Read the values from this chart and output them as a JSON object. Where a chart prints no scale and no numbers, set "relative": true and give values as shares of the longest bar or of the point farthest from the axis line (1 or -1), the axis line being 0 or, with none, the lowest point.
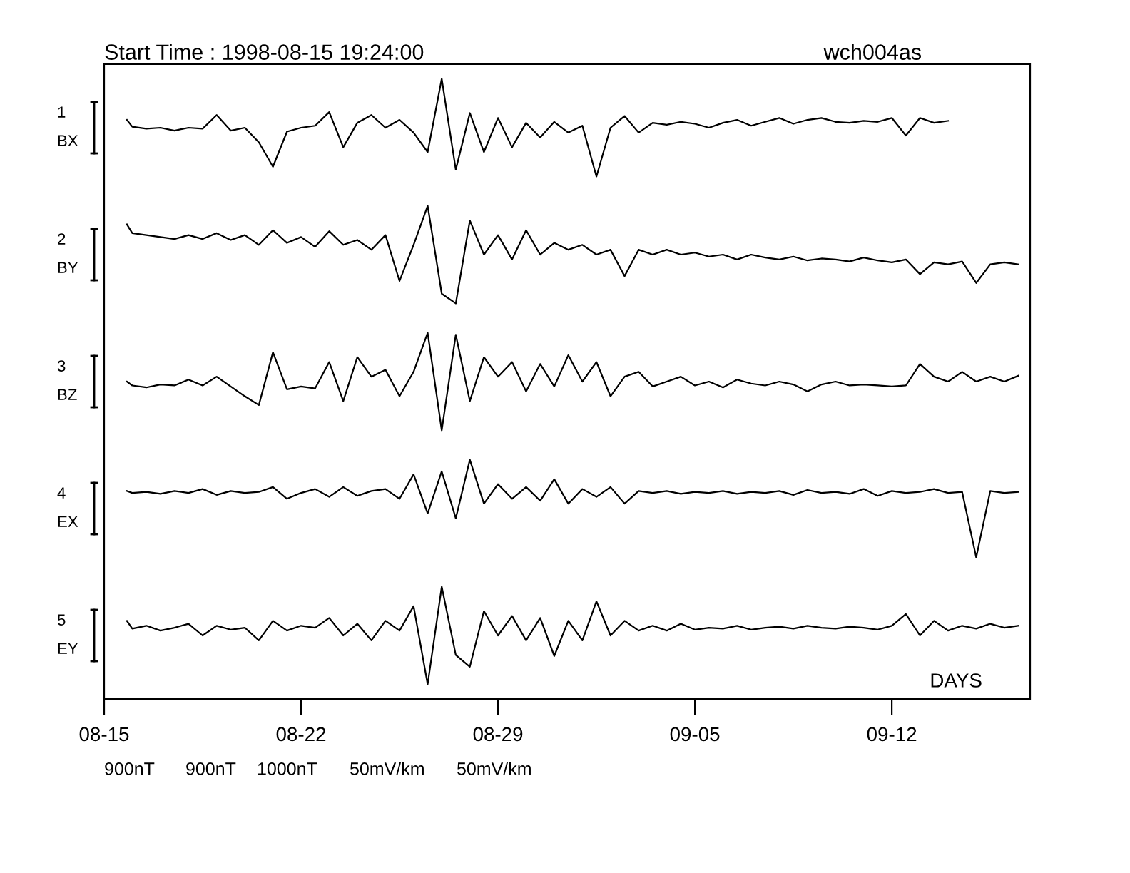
{
  "chart_data": [
    {
      "type": "line",
      "relative": true,
      "title": "Start Time : 1998-08-15 19:24:00",
      "subtitle": "wch004as",
      "ylabel": "1\nBX",
      "annotations": [
        "900nT"
      ],
      "tick_labels": false,
      "xlim": [
        "1998-08-15",
        "1998-09-16T22:00"
      ],
      "x": [
        "1998-08-15T19:24",
        "1998-08-16T00:00",
        "1998-08-16T12:00",
        "1998-08-17T00:00",
        "1998-08-17T12:00",
        "1998-08-18T00:00",
        "1998-08-18T12:00",
        "1998-08-19T00:00",
        "1998-08-19T12:00",
        "1998-08-20T00:00",
        "1998-08-20T12:00",
        "1998-08-21T00:00",
        "1998-08-21T12:00",
        "1998-08-22T00:00",
        "1998-08-22T12:00",
        "1998-08-23T00:00",
        "1998-08-23T12:00",
        "1998-08-24T00:00",
        "1998-08-24T12:00",
        "1998-08-25T00:00",
        "1998-08-25T12:00",
        "1998-08-26T00:00",
        "1998-08-26T12:00",
        "1998-08-27T00:00",
        "1998-08-27T12:00",
        "1998-08-28T00:00",
        "1998-08-28T12:00",
        "1998-08-29T00:00",
        "1998-08-29T12:00",
        "1998-08-30T00:00",
        "1998-08-30T12:00",
        "1998-08-31T00:00",
        "1998-08-31T12:00",
        "1998-09-01T00:00",
        "1998-09-01T12:00",
        "1998-09-02T00:00",
        "1998-09-02T12:00",
        "1998-09-03T00:00",
        "1998-09-03T12:00",
        "1998-09-04T00:00",
        "1998-09-04T12:00",
        "1998-09-05T00:00",
        "1998-09-05T12:00",
        "1998-09-06T00:00",
        "1998-09-06T12:00",
        "1998-09-07T00:00",
        "1998-09-07T12:00",
        "1998-09-08T00:00",
        "1998-09-08T12:00",
        "1998-09-09T00:00",
        "1998-09-09T12:00",
        "1998-09-10T00:00",
        "1998-09-10T12:00",
        "1998-09-11T00:00",
        "1998-09-11T12:00",
        "1998-09-12T00:00",
        "1998-09-12T12:00",
        "1998-09-13T00:00",
        "1998-09-13T12:00",
        "1998-09-14T00:00"
      ],
      "series": [
        {
          "color": "#000000",
          "values": [
            0.58,
            0.51,
            0.49,
            0.5,
            0.47,
            0.5,
            0.49,
            0.63,
            0.47,
            0.5,
            0.35,
            0.1,
            0.46,
            0.5,
            0.52,
            0.66,
            0.3,
            0.55,
            0.63,
            0.5,
            0.58,
            0.45,
            0.25,
            1.0,
            0.07,
            0.65,
            0.25,
            0.6,
            0.3,
            0.55,
            0.4,
            0.56,
            0.45,
            0.52,
            0.0,
            0.5,
            0.62,
            0.45,
            0.55,
            0.53,
            0.56,
            0.54,
            0.5,
            0.55,
            0.58,
            0.52,
            0.56,
            0.6,
            0.54,
            0.58,
            0.6,
            0.56,
            0.55,
            0.57,
            0.56,
            0.6,
            0.42,
            0.6,
            0.55,
            0.57
          ]
        }
      ]
    },
    {
      "type": "line",
      "relative": true,
      "ylabel": "2\nBY",
      "annotations": [
        "900nT"
      ],
      "tick_labels": false,
      "xlim": [
        "1998-08-15",
        "1998-09-16T22:00"
      ],
      "x": [
        "1998-08-15T19:24",
        "1998-08-16T00:00",
        "1998-08-16T12:00",
        "1998-08-17T00:00",
        "1998-08-17T12:00",
        "1998-08-18T00:00",
        "1998-08-18T12:00",
        "1998-08-19T00:00",
        "1998-08-19T12:00",
        "1998-08-20T00:00",
        "1998-08-20T12:00",
        "1998-08-21T00:00",
        "1998-08-21T12:00",
        "1998-08-22T00:00",
        "1998-08-22T12:00",
        "1998-08-23T00:00",
        "1998-08-23T12:00",
        "1998-08-24T00:00",
        "1998-08-24T12:00",
        "1998-08-25T00:00",
        "1998-08-25T12:00",
        "1998-08-26T00:00",
        "1998-08-26T12:00",
        "1998-08-27T00:00",
        "1998-08-27T12:00",
        "1998-08-28T00:00",
        "1998-08-28T12:00",
        "1998-08-29T00:00",
        "1998-08-29T12:00",
        "1998-08-30T00:00",
        "1998-08-30T12:00",
        "1998-08-31T00:00",
        "1998-08-31T12:00",
        "1998-09-01T00:00",
        "1998-09-01T12:00",
        "1998-09-02T00:00",
        "1998-09-02T12:00",
        "1998-09-03T00:00",
        "1998-09-03T12:00",
        "1998-09-04T00:00",
        "1998-09-04T12:00",
        "1998-09-05T00:00",
        "1998-09-05T12:00",
        "1998-09-06T00:00",
        "1998-09-06T12:00",
        "1998-09-07T00:00",
        "1998-09-07T12:00",
        "1998-09-08T00:00",
        "1998-09-08T12:00",
        "1998-09-09T00:00",
        "1998-09-09T12:00",
        "1998-09-10T00:00",
        "1998-09-10T12:00",
        "1998-09-11T00:00",
        "1998-09-11T12:00",
        "1998-09-12T00:00",
        "1998-09-12T12:00",
        "1998-09-13T00:00",
        "1998-09-13T12:00",
        "1998-09-14T00:00",
        "1998-09-14T12:00",
        "1998-09-15T00:00",
        "1998-09-15T12:00",
        "1998-09-16T00:00",
        "1998-09-16T12:00"
      ],
      "series": [
        {
          "color": "#000000",
          "values": [
            0.81,
            0.72,
            0.7,
            0.68,
            0.66,
            0.7,
            0.66,
            0.72,
            0.65,
            0.7,
            0.6,
            0.75,
            0.62,
            0.68,
            0.58,
            0.74,
            0.6,
            0.65,
            0.55,
            0.7,
            0.23,
            0.6,
            1.0,
            0.1,
            0.0,
            0.85,
            0.5,
            0.7,
            0.45,
            0.75,
            0.5,
            0.62,
            0.55,
            0.6,
            0.5,
            0.55,
            0.28,
            0.55,
            0.5,
            0.55,
            0.5,
            0.52,
            0.48,
            0.5,
            0.45,
            0.5,
            0.47,
            0.45,
            0.48,
            0.44,
            0.46,
            0.45,
            0.43,
            0.47,
            0.44,
            0.42,
            0.45,
            0.3,
            0.42,
            0.4,
            0.43,
            0.21,
            0.4,
            0.42,
            0.4
          ]
        }
      ]
    },
    {
      "type": "line",
      "relative": true,
      "ylabel": "3\nBZ",
      "annotations": [
        "1000nT"
      ],
      "tick_labels": false,
      "xlim": [
        "1998-08-15",
        "1998-09-16T22:00"
      ],
      "x": [
        "1998-08-15T19:24",
        "1998-08-16T00:00",
        "1998-08-16T12:00",
        "1998-08-17T00:00",
        "1998-08-17T12:00",
        "1998-08-18T00:00",
        "1998-08-18T12:00",
        "1998-08-19T00:00",
        "1998-08-19T12:00",
        "1998-08-20T00:00",
        "1998-08-20T12:00",
        "1998-08-21T00:00",
        "1998-08-21T12:00",
        "1998-08-22T00:00",
        "1998-08-22T12:00",
        "1998-08-23T00:00",
        "1998-08-23T12:00",
        "1998-08-24T00:00",
        "1998-08-24T12:00",
        "1998-08-25T00:00",
        "1998-08-25T12:00",
        "1998-08-26T00:00",
        "1998-08-26T12:00",
        "1998-08-27T00:00",
        "1998-08-27T12:00",
        "1998-08-28T00:00",
        "1998-08-28T12:00",
        "1998-08-29T00:00",
        "1998-08-29T12:00",
        "1998-08-30T00:00",
        "1998-08-30T12:00",
        "1998-08-31T00:00",
        "1998-08-31T12:00",
        "1998-09-01T00:00",
        "1998-09-01T12:00",
        "1998-09-02T00:00",
        "1998-09-02T12:00",
        "1998-09-03T00:00",
        "1998-09-03T12:00",
        "1998-09-04T00:00",
        "1998-09-04T12:00",
        "1998-09-05T00:00",
        "1998-09-05T12:00",
        "1998-09-06T00:00",
        "1998-09-06T12:00",
        "1998-09-07T00:00",
        "1998-09-07T12:00",
        "1998-09-08T00:00",
        "1998-09-08T12:00",
        "1998-09-09T00:00",
        "1998-09-09T12:00",
        "1998-09-10T00:00",
        "1998-09-10T12:00",
        "1998-09-11T00:00",
        "1998-09-11T12:00",
        "1998-09-12T00:00",
        "1998-09-12T12:00",
        "1998-09-13T00:00",
        "1998-09-13T12:00",
        "1998-09-14T00:00",
        "1998-09-14T12:00",
        "1998-09-15T00:00",
        "1998-09-15T12:00",
        "1998-09-16T00:00",
        "1998-09-16T12:00"
      ],
      "series": [
        {
          "color": "#000000",
          "values": [
            0.5,
            0.46,
            0.44,
            0.47,
            0.46,
            0.52,
            0.46,
            0.55,
            0.45,
            0.35,
            0.26,
            0.8,
            0.42,
            0.45,
            0.43,
            0.7,
            0.3,
            0.75,
            0.55,
            0.62,
            0.35,
            0.6,
            1.0,
            0.0,
            0.98,
            0.3,
            0.75,
            0.55,
            0.7,
            0.4,
            0.68,
            0.45,
            0.77,
            0.5,
            0.7,
            0.35,
            0.55,
            0.6,
            0.45,
            0.5,
            0.55,
            0.46,
            0.5,
            0.44,
            0.52,
            0.48,
            0.46,
            0.5,
            0.47,
            0.4,
            0.47,
            0.5,
            0.46,
            0.47,
            0.46,
            0.45,
            0.46,
            0.68,
            0.55,
            0.5,
            0.6,
            0.5,
            0.55,
            0.5,
            0.56
          ]
        }
      ]
    },
    {
      "type": "line",
      "relative": true,
      "ylabel": "4\nEX",
      "annotations": [
        "50mV/km"
      ],
      "tick_labels": false,
      "xlim": [
        "1998-08-15",
        "1998-09-16T22:00"
      ],
      "x": [
        "1998-08-15T19:24",
        "1998-08-16T00:00",
        "1998-08-16T12:00",
        "1998-08-17T00:00",
        "1998-08-17T12:00",
        "1998-08-18T00:00",
        "1998-08-18T12:00",
        "1998-08-19T00:00",
        "1998-08-19T12:00",
        "1998-08-20T00:00",
        "1998-08-20T12:00",
        "1998-08-21T00:00",
        "1998-08-21T12:00",
        "1998-08-22T00:00",
        "1998-08-22T12:00",
        "1998-08-23T00:00",
        "1998-08-23T12:00",
        "1998-08-24T00:00",
        "1998-08-24T12:00",
        "1998-08-25T00:00",
        "1998-08-25T12:00",
        "1998-08-26T00:00",
        "1998-08-26T12:00",
        "1998-08-27T00:00",
        "1998-08-27T12:00",
        "1998-08-28T00:00",
        "1998-08-28T12:00",
        "1998-08-29T00:00",
        "1998-08-29T12:00",
        "1998-08-30T00:00",
        "1998-08-30T12:00",
        "1998-08-31T00:00",
        "1998-08-31T12:00",
        "1998-09-01T00:00",
        "1998-09-01T12:00",
        "1998-09-02T00:00",
        "1998-09-02T12:00",
        "1998-09-03T00:00",
        "1998-09-03T12:00",
        "1998-09-04T00:00",
        "1998-09-04T12:00",
        "1998-09-05T00:00",
        "1998-09-05T12:00",
        "1998-09-06T00:00",
        "1998-09-06T12:00",
        "1998-09-07T00:00",
        "1998-09-07T12:00",
        "1998-09-08T00:00",
        "1998-09-08T12:00",
        "1998-09-09T00:00",
        "1998-09-09T12:00",
        "1998-09-10T00:00",
        "1998-09-10T12:00",
        "1998-09-11T00:00",
        "1998-09-11T12:00",
        "1998-09-12T00:00",
        "1998-09-12T12:00",
        "1998-09-13T00:00",
        "1998-09-13T12:00",
        "1998-09-14T00:00",
        "1998-09-14T12:00",
        "1998-09-15T00:00",
        "1998-09-15T12:00",
        "1998-09-16T00:00",
        "1998-09-16T12:00"
      ],
      "series": [
        {
          "color": "#000000",
          "values": [
            0.68,
            0.66,
            0.67,
            0.65,
            0.68,
            0.66,
            0.7,
            0.64,
            0.68,
            0.66,
            0.67,
            0.72,
            0.6,
            0.66,
            0.7,
            0.62,
            0.72,
            0.63,
            0.68,
            0.7,
            0.6,
            0.85,
            0.45,
            0.88,
            0.4,
            1.0,
            0.55,
            0.75,
            0.6,
            0.72,
            0.58,
            0.8,
            0.55,
            0.7,
            0.62,
            0.72,
            0.55,
            0.68,
            0.66,
            0.68,
            0.65,
            0.67,
            0.66,
            0.68,
            0.65,
            0.67,
            0.66,
            0.68,
            0.64,
            0.69,
            0.66,
            0.67,
            0.65,
            0.7,
            0.63,
            0.68,
            0.66,
            0.67,
            0.7,
            0.66,
            0.67,
            0.0,
            0.68,
            0.66,
            0.67
          ]
        }
      ]
    },
    {
      "type": "line",
      "relative": true,
      "ylabel": "5\nEY",
      "xlabel": "DAYS",
      "annotations": [
        "50mV/km"
      ],
      "tick_labels": "x",
      "xlim": [
        "1998-08-15",
        "1998-09-16T22:00"
      ],
      "xticks": [
        {
          "value": "1998-08-15",
          "label": "08-15"
        },
        {
          "value": "1998-08-22",
          "label": "08-22"
        },
        {
          "value": "1998-08-29",
          "label": "08-29"
        },
        {
          "value": "1998-09-05",
          "label": "09-05"
        },
        {
          "value": "1998-09-12",
          "label": "09-12"
        }
      ],
      "x": [
        "1998-08-15T19:24",
        "1998-08-16T00:00",
        "1998-08-16T12:00",
        "1998-08-17T00:00",
        "1998-08-17T12:00",
        "1998-08-18T00:00",
        "1998-08-18T12:00",
        "1998-08-19T00:00",
        "1998-08-19T12:00",
        "1998-08-20T00:00",
        "1998-08-20T12:00",
        "1998-08-21T00:00",
        "1998-08-21T12:00",
        "1998-08-22T00:00",
        "1998-08-22T12:00",
        "1998-08-23T00:00",
        "1998-08-23T12:00",
        "1998-08-24T00:00",
        "1998-08-24T12:00",
        "1998-08-25T00:00",
        "1998-08-25T12:00",
        "1998-08-26T00:00",
        "1998-08-26T12:00",
        "1998-08-27T00:00",
        "1998-08-27T12:00",
        "1998-08-28T00:00",
        "1998-08-28T12:00",
        "1998-08-29T00:00",
        "1998-08-29T12:00",
        "1998-08-30T00:00",
        "1998-08-30T12:00",
        "1998-08-31T00:00",
        "1998-08-31T12:00",
        "1998-09-01T00:00",
        "1998-09-01T12:00",
        "1998-09-02T00:00",
        "1998-09-02T12:00",
        "1998-09-03T00:00",
        "1998-09-03T12:00",
        "1998-09-04T00:00",
        "1998-09-04T12:00",
        "1998-09-05T00:00",
        "1998-09-05T12:00",
        "1998-09-06T00:00",
        "1998-09-06T12:00",
        "1998-09-07T00:00",
        "1998-09-07T12:00",
        "1998-09-08T00:00",
        "1998-09-08T12:00",
        "1998-09-09T00:00",
        "1998-09-09T12:00",
        "1998-09-10T00:00",
        "1998-09-10T12:00",
        "1998-09-11T00:00",
        "1998-09-11T12:00",
        "1998-09-12T00:00",
        "1998-09-12T12:00",
        "1998-09-13T00:00",
        "1998-09-13T12:00",
        "1998-09-14T00:00",
        "1998-09-14T12:00",
        "1998-09-15T00:00",
        "1998-09-15T12:00",
        "1998-09-16T00:00",
        "1998-09-16T12:00"
      ],
      "series": [
        {
          "color": "#000000",
          "values": [
            0.65,
            0.57,
            0.6,
            0.55,
            0.58,
            0.62,
            0.5,
            0.6,
            0.56,
            0.58,
            0.45,
            0.65,
            0.55,
            0.6,
            0.58,
            0.68,
            0.5,
            0.62,
            0.45,
            0.65,
            0.55,
            0.8,
            0.0,
            1.0,
            0.3,
            0.18,
            0.75,
            0.5,
            0.7,
            0.45,
            0.68,
            0.29,
            0.65,
            0.45,
            0.85,
            0.5,
            0.65,
            0.55,
            0.6,
            0.55,
            0.62,
            0.56,
            0.58,
            0.57,
            0.6,
            0.56,
            0.58,
            0.59,
            0.57,
            0.6,
            0.58,
            0.57,
            0.59,
            0.58,
            0.56,
            0.6,
            0.72,
            0.5,
            0.65,
            0.55,
            0.6,
            0.57,
            0.62,
            0.58,
            0.6
          ]
        }
      ]
    }
  ]
}
